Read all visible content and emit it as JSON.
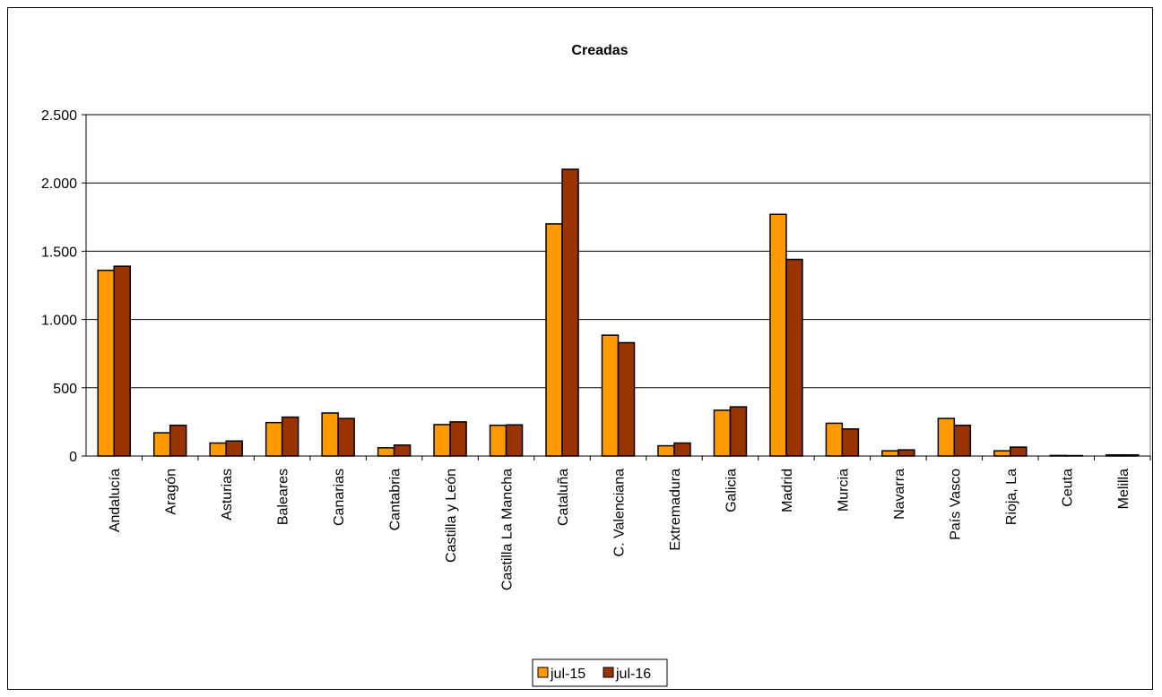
{
  "chart_data": {
    "type": "bar",
    "title": "Creadas",
    "categories": [
      "Andalucía",
      "Aragón",
      "Asturias",
      "Baleares",
      "Canarias",
      "Cantabria",
      "Castilla y León",
      "Castilla  La Mancha",
      "Cataluña",
      "C. Valenciana",
      "Extremadura",
      "Galicia",
      "Madrid",
      "Murcia",
      "Navarra",
      "País Vasco",
      "Rioja, La",
      "Ceuta",
      "Melilla"
    ],
    "series": [
      {
        "name": "jul-15",
        "color": "#FF9900",
        "values": [
          1360,
          170,
          95,
          245,
          315,
          60,
          230,
          225,
          1700,
          885,
          75,
          335,
          1770,
          240,
          38,
          275,
          38,
          4,
          8
        ]
      },
      {
        "name": "jul-16",
        "color": "#993300",
        "values": [
          1390,
          225,
          110,
          285,
          275,
          80,
          250,
          228,
          2100,
          830,
          95,
          360,
          1440,
          198,
          45,
          225,
          65,
          3,
          8
        ]
      }
    ],
    "ylim": [
      0,
      2500
    ],
    "yticks": [
      0,
      500,
      1000,
      1500,
      2000,
      2500
    ],
    "ytick_labels": [
      "0",
      "500",
      "1.000",
      "1.500",
      "2.000",
      "2.500"
    ],
    "grid": true,
    "legend_position": "bottom-center"
  }
}
